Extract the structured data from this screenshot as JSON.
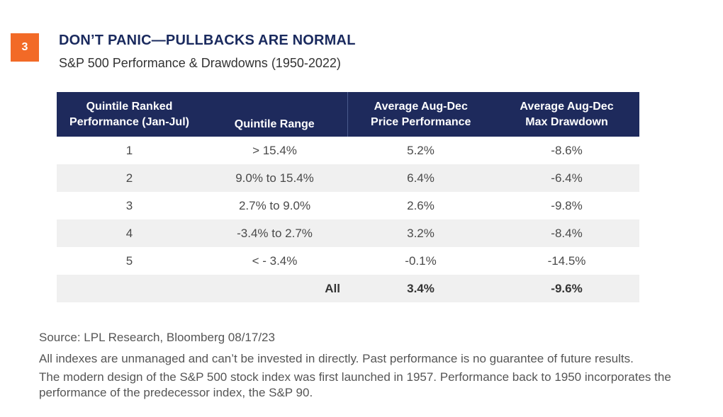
{
  "badge": "3",
  "title": "DON’T PANIC—PULLBACKS ARE NORMAL",
  "subtitle": "S&P 500 Performance & Drawdowns (1950-2022)",
  "chart_data": {
    "type": "table",
    "columns": [
      "Quintile Ranked Performance (Jan-Jul)",
      "Quintile Range",
      "Average Aug-Dec Price Performance",
      "Average Aug-Dec Max Drawdown"
    ],
    "header": {
      "col1_line1": "Quintile Ranked",
      "col1_line2": "Performance (Jan-Jul)",
      "col2": "Quintile Range",
      "col3_line1": "Average Aug-Dec",
      "col3_line2": "Price Performance",
      "col4_line1": "Average Aug-Dec",
      "col4_line2": "Max Drawdown"
    },
    "rows": [
      [
        "1",
        "> 15.4%",
        "5.2%",
        "-8.6%"
      ],
      [
        "2",
        "9.0% to 15.4%",
        "6.4%",
        "-6.4%"
      ],
      [
        "3",
        "2.7% to 9.0%",
        "2.6%",
        "-9.8%"
      ],
      [
        "4",
        "-3.4% to 2.7%",
        "3.2%",
        "-8.4%"
      ],
      [
        "5",
        "< - 3.4%",
        "-0.1%",
        "-14.5%"
      ]
    ],
    "total": {
      "label": "All",
      "performance": "3.4%",
      "drawdown": "-9.6%"
    }
  },
  "notes": {
    "source": "Source: LPL Research, Bloomberg 08/17/23",
    "disclaimer": "All indexes are unmanaged and can’t be invested in directly. Past performance is no guarantee of future results.",
    "history": "The modern design of the S&P 500 stock index was first launched in 1957. Performance back to 1950 incorporates the performance of the predecessor index, the S&P 90."
  },
  "colors": {
    "badge": "#f26a27",
    "header_bg": "#1e2a5c",
    "title": "#1a2a5e",
    "row_stripe": "#f0f0f0"
  }
}
